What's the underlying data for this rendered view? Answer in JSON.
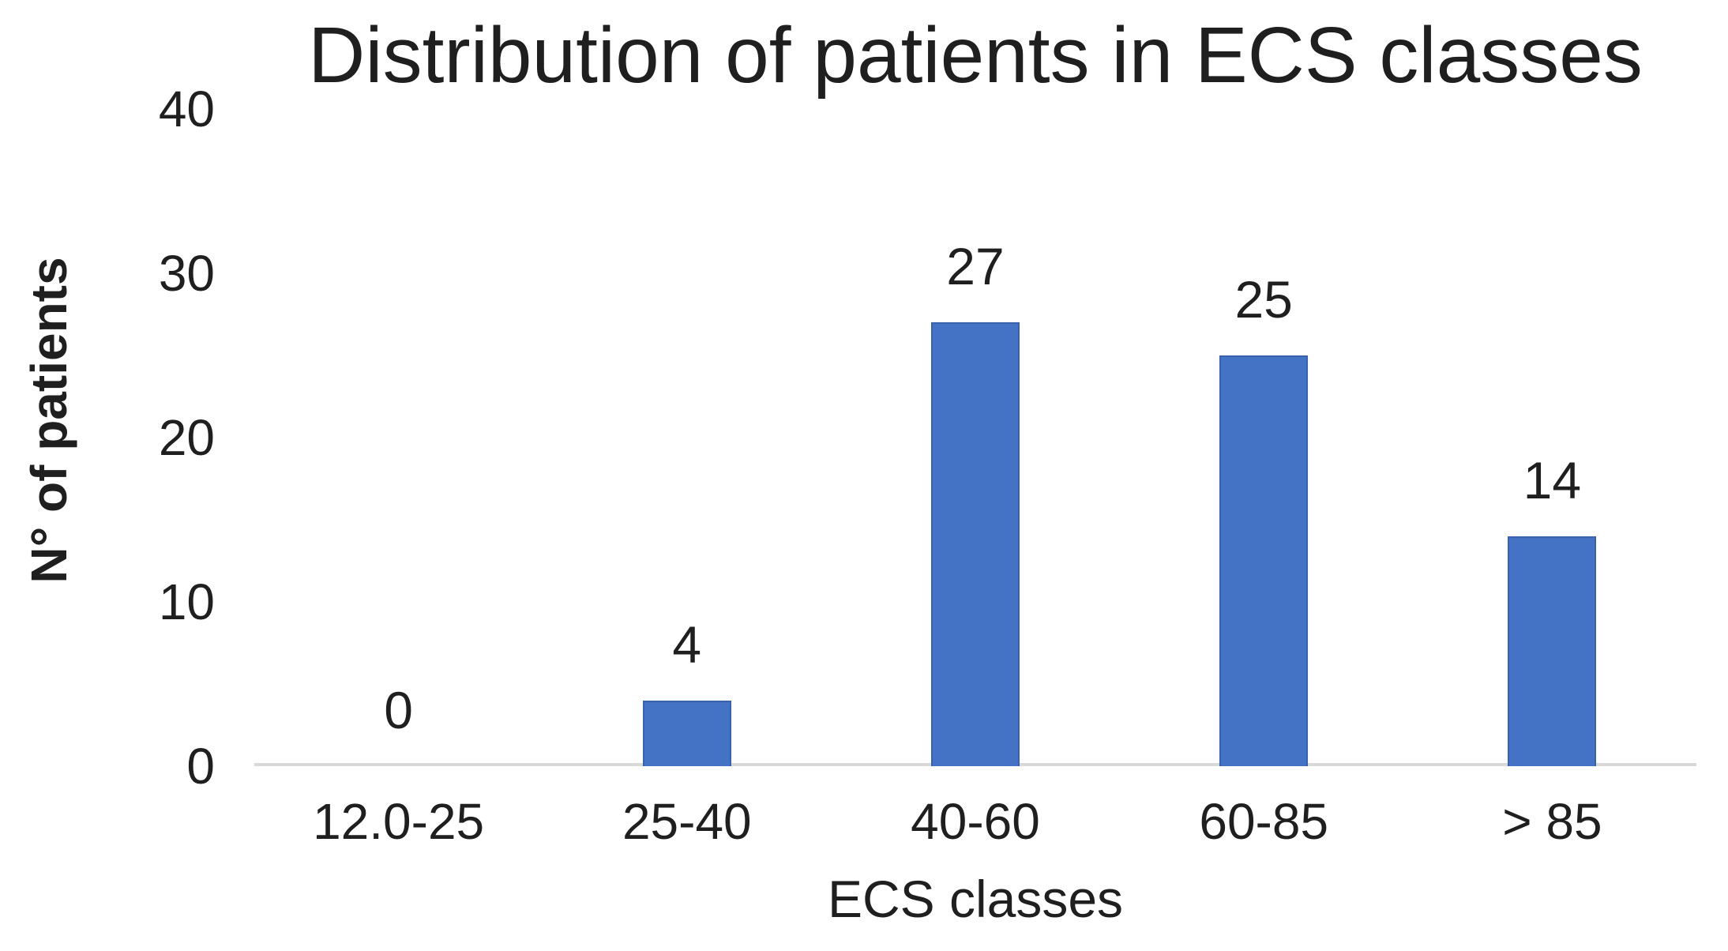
{
  "chart_data": {
    "type": "bar",
    "title": "Distribution of patients in ECS classes",
    "xlabel": "ECS classes",
    "ylabel": "N° of patients",
    "categories": [
      "12.0-25",
      "25-40",
      "40-60",
      "60-85",
      "> 85"
    ],
    "values": [
      0,
      4,
      27,
      25,
      14
    ],
    "data_labels": [
      "0",
      "4",
      "27",
      "25",
      "14"
    ],
    "ylim": [
      0,
      40
    ],
    "yticks": [
      0,
      10,
      20,
      30,
      40
    ],
    "grid": false,
    "legend": false,
    "colors": {
      "bar_fill": "#4472C4",
      "bar_border": "#3A62AC",
      "axis_line": "#D9D9D9",
      "text": "#1F1F1F"
    }
  }
}
